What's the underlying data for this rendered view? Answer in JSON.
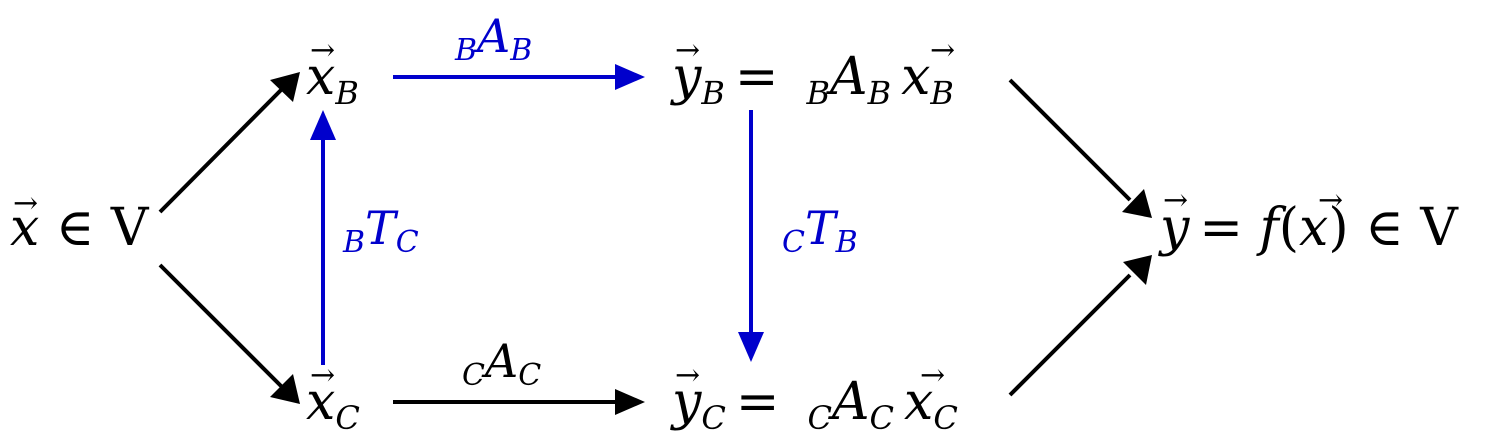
{
  "colors": {
    "black": "#000000",
    "blue": "#0000cc"
  },
  "nodes": {
    "x_in_V": {
      "pre": "x",
      "post": " ∈ V"
    },
    "x_B": {
      "base": "x",
      "sub": "B"
    },
    "x_C": {
      "base": "x",
      "sub": "C"
    },
    "y_B": {
      "lhs_base": "y",
      "lhs_sub": "B",
      "eq": "=",
      "m_pre": "B",
      "m_base": "A",
      "m_sub": "B",
      "v_base": "x",
      "v_sub": "B"
    },
    "y_C": {
      "lhs_base": "y",
      "lhs_sub": "C",
      "eq": "=",
      "m_pre": "C",
      "m_base": "A",
      "m_sub": "C",
      "v_base": "x",
      "v_sub": "C"
    },
    "y_result": {
      "y": "y",
      "eq": "= ",
      "f": "f",
      "open": "(",
      "x": "x",
      "close": ")",
      "in": " ∈ V"
    }
  },
  "labels": {
    "BAB": {
      "pre": "B",
      "base": "A",
      "sub": "B"
    },
    "CAC": {
      "pre": "C",
      "base": "A",
      "sub": "C"
    },
    "BTC": {
      "pre": "B",
      "base": "T",
      "sub": "C"
    },
    "CTB": {
      "pre": "C",
      "base": "T",
      "sub": "B"
    }
  }
}
